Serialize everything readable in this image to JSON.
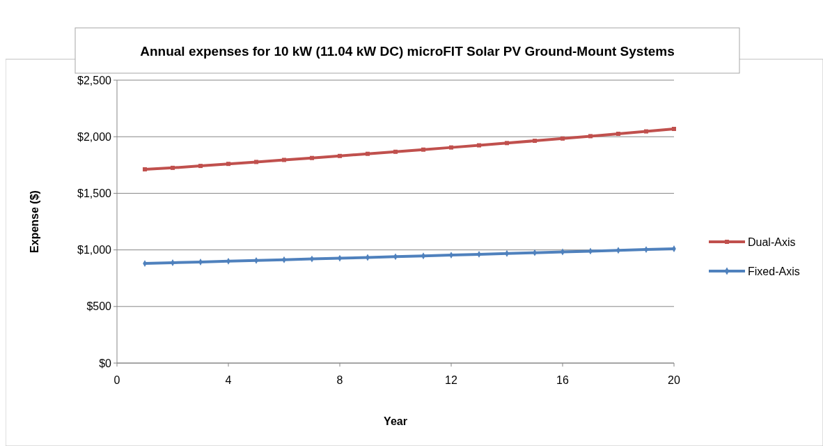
{
  "chart_data": {
    "type": "line",
    "title": "Annual expenses for 10 kW (11.04 kW DC) microFIT Solar PV Ground-Mount Systems",
    "xlabel": "Year",
    "ylabel": "Expense ($)",
    "x": [
      1,
      2,
      3,
      4,
      5,
      6,
      7,
      8,
      9,
      10,
      11,
      12,
      13,
      14,
      15,
      16,
      17,
      18,
      19,
      20
    ],
    "series": [
      {
        "name": "Dual-Axis",
        "color": "#c0504d",
        "marker": "square",
        "values": [
          1712,
          1725,
          1742,
          1760,
          1777,
          1795,
          1812,
          1830,
          1849,
          1867,
          1886,
          1905,
          1924,
          1944,
          1964,
          1984,
          2005,
          2026,
          2047,
          2069
        ]
      },
      {
        "name": "Fixed-Axis",
        "color": "#4f81bd",
        "marker": "diamond",
        "values": [
          880,
          887,
          893,
          900,
          906,
          913,
          920,
          926,
          933,
          940,
          947,
          954,
          961,
          968,
          975,
          982,
          989,
          996,
          1003,
          1010
        ]
      }
    ],
    "xlim": [
      0,
      20
    ],
    "xticks": [
      0,
      4,
      8,
      12,
      16,
      20
    ],
    "ylim": [
      0,
      2500
    ],
    "yticks": [
      {
        "value": 0,
        "label": "$0"
      },
      {
        "value": 500,
        "label": "$500"
      },
      {
        "value": 1000,
        "label": "$1,000"
      },
      {
        "value": 1500,
        "label": "$1,500"
      },
      {
        "value": 2000,
        "label": "$2,000"
      },
      {
        "value": 2500,
        "label": "$2,500"
      }
    ],
    "grid": "y",
    "legend": "right",
    "line_style": "solid"
  }
}
